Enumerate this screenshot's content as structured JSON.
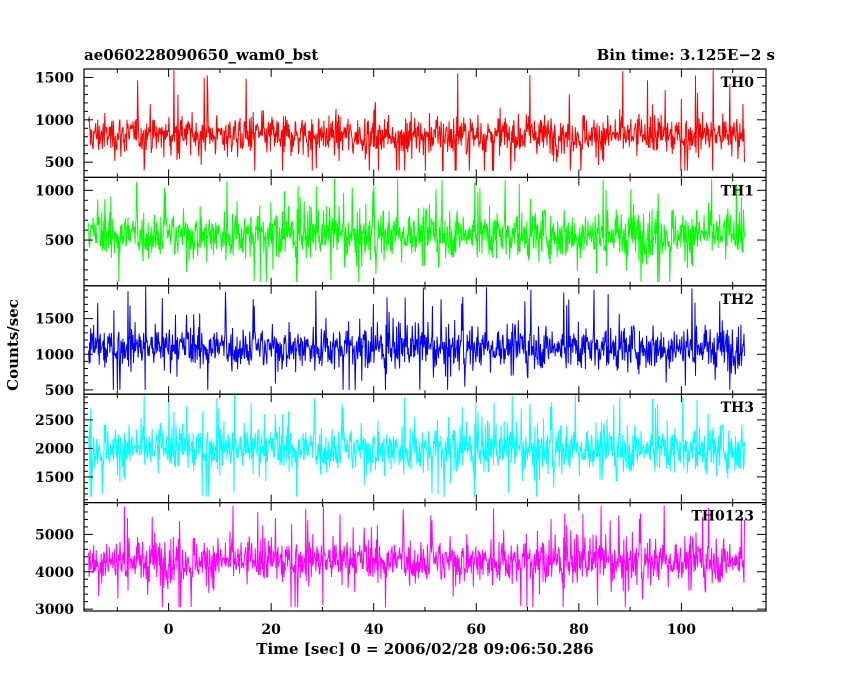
{
  "header": {
    "left_title": "ae060228090650_wam0_bst",
    "right_title": "Bin time: 3.125E−2 s"
  },
  "chart_data": {
    "type": "line",
    "xlabel": "Time [sec] 0 = 2006/02/28 09:06:50.286",
    "ylabel": "Counts/sec",
    "xlim": [
      -16.5,
      116.5
    ],
    "x_ticks": [
      0,
      20,
      40,
      60,
      80,
      100
    ],
    "x_data_range": [
      -15.6,
      112.3
    ],
    "grid": false,
    "panels": [
      {
        "name": "TH0",
        "color": "#ff0000",
        "ylim": [
          320,
          1600
        ],
        "y_ticks": [
          500,
          1000,
          1500
        ],
        "series_stats": {
          "mean": 820,
          "typical_min": 560,
          "typical_max": 1180,
          "min": 400,
          "max": 1600
        }
      },
      {
        "name": "TH1",
        "color": "#00ff00",
        "ylim": [
          40,
          1130
        ],
        "y_ticks": [
          500,
          1000
        ],
        "series_stats": {
          "mean": 560,
          "typical_min": 240,
          "typical_max": 880,
          "min": 80,
          "max": 1130
        }
      },
      {
        "name": "TH2",
        "color": "#0000ee",
        "ylim": [
          440,
          1960
        ],
        "y_ticks": [
          500,
          1000,
          1500
        ],
        "series_stats": {
          "mean": 1100,
          "typical_min": 720,
          "typical_max": 1520,
          "min": 500,
          "max": 1960
        }
      },
      {
        "name": "TH3",
        "color": "#00ffff",
        "ylim": [
          1050,
          2950
        ],
        "y_ticks": [
          1500,
          2000,
          2500
        ],
        "series_stats": {
          "mean": 2000,
          "typical_min": 1450,
          "typical_max": 2550,
          "min": 1150,
          "max": 2950
        }
      },
      {
        "name": "TH0123",
        "color": "#ff00ff",
        "ylim": [
          2950,
          5850
        ],
        "y_ticks": [
          3000,
          4000,
          5000
        ],
        "series_stats": {
          "mean": 4300,
          "typical_min": 3500,
          "typical_max": 5100,
          "min": 3050,
          "max": 5800
        }
      }
    ]
  }
}
